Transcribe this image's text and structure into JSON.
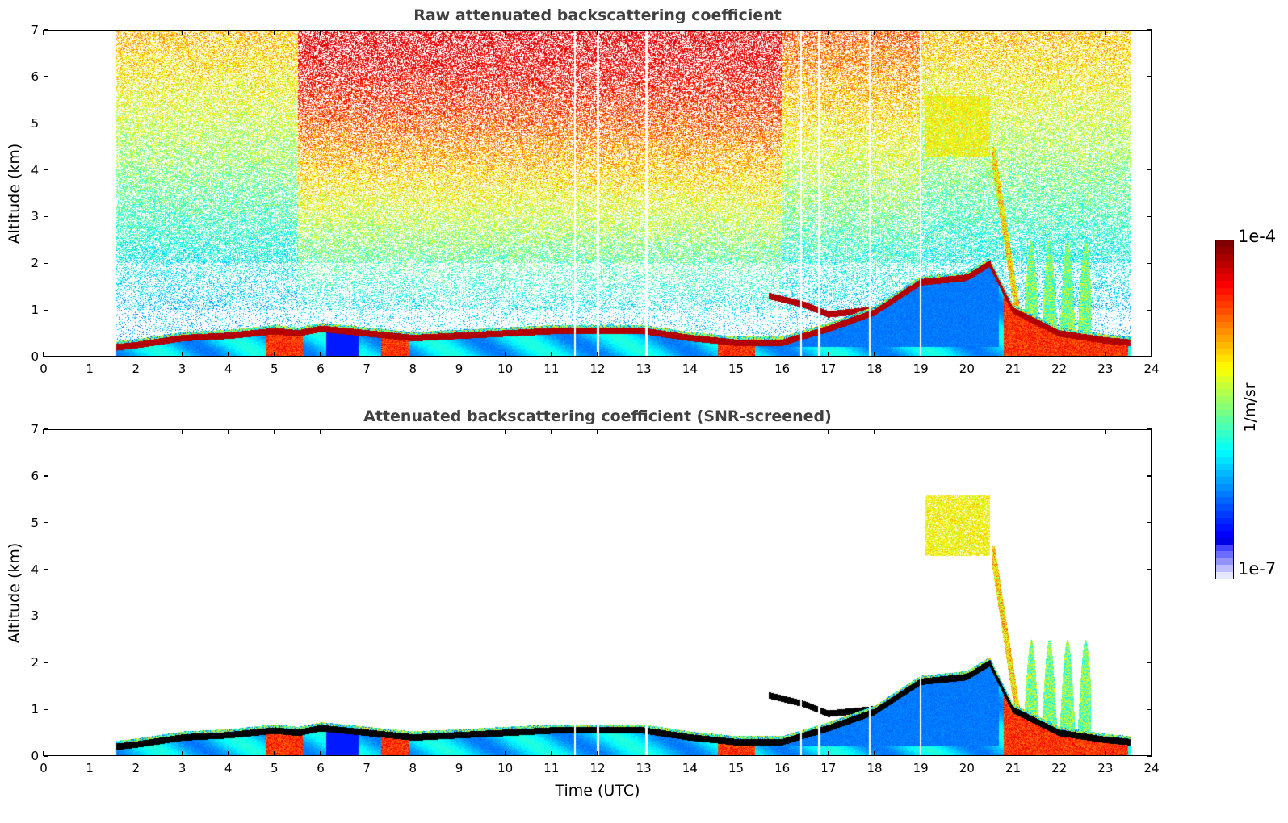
{
  "chart_data": [
    {
      "type": "heatmap",
      "id": "raw",
      "title": "Raw attenuated backscattering coefficient",
      "xlabel": "",
      "ylabel": "Altitude (km)",
      "xlim": [
        0,
        24
      ],
      "ylim": [
        0,
        7
      ],
      "xticks": [
        "0",
        "1",
        "2",
        "3",
        "4",
        "5",
        "6",
        "7",
        "8",
        "9",
        "10",
        "11",
        "12",
        "13",
        "14",
        "15",
        "16",
        "17",
        "18",
        "19",
        "20",
        "21",
        "22",
        "23",
        "24"
      ],
      "yticks": [
        "0",
        "1",
        "2",
        "3",
        "4",
        "5",
        "6",
        "7"
      ],
      "data_time_range": [
        1.55,
        23.55
      ],
      "screened": false,
      "features": {
        "boundary_layer_top_km": [
          [
            1.55,
            0.2
          ],
          [
            2,
            0.25
          ],
          [
            3,
            0.4
          ],
          [
            4,
            0.45
          ],
          [
            5,
            0.55
          ],
          [
            5.5,
            0.5
          ],
          [
            6,
            0.6
          ],
          [
            7,
            0.5
          ],
          [
            8,
            0.4
          ],
          [
            9,
            0.45
          ],
          [
            10,
            0.5
          ],
          [
            11,
            0.55
          ],
          [
            12,
            0.55
          ],
          [
            13,
            0.55
          ],
          [
            14,
            0.4
          ],
          [
            15,
            0.3
          ],
          [
            16,
            0.3
          ],
          [
            17,
            0.6
          ],
          [
            18,
            0.95
          ],
          [
            19,
            1.6
          ],
          [
            20,
            1.7
          ],
          [
            20.5,
            2.0
          ],
          [
            21,
            1.0
          ],
          [
            22,
            0.5
          ],
          [
            23,
            0.35
          ],
          [
            23.55,
            0.3
          ]
        ],
        "elevated_layer_km": [
          [
            15.7,
            1.3
          ],
          [
            16.5,
            1.1
          ],
          [
            17,
            0.9
          ],
          [
            17.5,
            0.95
          ],
          [
            18,
            1.0
          ],
          [
            18.5,
            1.3
          ],
          [
            19,
            1.6
          ]
        ],
        "cirrus_cloud": {
          "time": [
            19.1,
            20.5
          ],
          "altitude_km": [
            4.3,
            5.6
          ]
        },
        "fall_streak": {
          "time": [
            20.5,
            21.2
          ],
          "altitude_km": [
            0,
            4.5
          ]
        },
        "data_gaps_utc": [
          11.5,
          12.0,
          13.05,
          16.4,
          16.8,
          17.9,
          19.0
        ]
      }
    },
    {
      "type": "heatmap",
      "id": "screened",
      "title": "Attenuated backscattering coefficient (SNR-screened)",
      "xlabel": "Time (UTC)",
      "ylabel": "Altitude (km)",
      "xlim": [
        0,
        24
      ],
      "ylim": [
        0,
        7
      ],
      "xticks": [
        "0",
        "1",
        "2",
        "3",
        "4",
        "5",
        "6",
        "7",
        "8",
        "9",
        "10",
        "11",
        "12",
        "13",
        "14",
        "15",
        "16",
        "17",
        "18",
        "19",
        "20",
        "21",
        "22",
        "23",
        "24"
      ],
      "yticks": [
        "0",
        "1",
        "2",
        "3",
        "4",
        "5",
        "6",
        "7"
      ],
      "data_time_range": [
        1.55,
        23.55
      ],
      "screened": true
    }
  ],
  "colorbar": {
    "label": "1/m/sr",
    "max_label": "1e-4",
    "min_label": "1e-7",
    "scale": "log",
    "range": [
      1e-07,
      0.0001
    ],
    "colormap": "jet"
  },
  "colors": {
    "title": "#404040",
    "saturated": "#000000",
    "jet_low": "#00007f",
    "jet_high": "#7f0000"
  }
}
